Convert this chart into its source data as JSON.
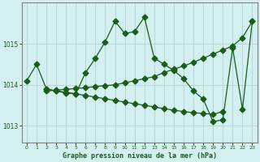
{
  "title": "Graphe pression niveau de la mer (hPa)",
  "bg_color": "#d4efef",
  "grid_color": "#b8d8d8",
  "line_color": "#1a5c1a",
  "xlim": [
    -0.5,
    23.5
  ],
  "ylim": [
    1012.6,
    1016.0
  ],
  "yticks": [
    1013,
    1014,
    1015
  ],
  "xticks": [
    0,
    1,
    2,
    3,
    4,
    5,
    6,
    7,
    8,
    9,
    10,
    11,
    12,
    13,
    14,
    15,
    16,
    17,
    18,
    19,
    20,
    21,
    22,
    23
  ],
  "series0_x": [
    0,
    1,
    2,
    3,
    4,
    5,
    6,
    7,
    8,
    9,
    10,
    11,
    12,
    13,
    14,
    15,
    16,
    17,
    18,
    19,
    20,
    21,
    22,
    23
  ],
  "series0_y": [
    1014.1,
    1014.5,
    1013.9,
    1013.85,
    1013.8,
    1013.78,
    1014.3,
    1014.65,
    1015.05,
    1015.55,
    1015.25,
    1015.3,
    1015.65,
    1014.65,
    1014.5,
    1014.35,
    1014.15,
    1013.85,
    1013.65,
    1013.1,
    1013.15,
    1014.9,
    1013.4,
    1015.55
  ],
  "series1_x": [
    2,
    3,
    4,
    5,
    6,
    7,
    8,
    9,
    10,
    11,
    12,
    13,
    14,
    15,
    16,
    17,
    18,
    19,
    20,
    21,
    22,
    23
  ],
  "series1_y": [
    1013.85,
    1013.87,
    1013.89,
    1013.91,
    1013.93,
    1013.96,
    1013.98,
    1014.0,
    1014.05,
    1014.1,
    1014.15,
    1014.2,
    1014.3,
    1014.38,
    1014.46,
    1014.55,
    1014.65,
    1014.75,
    1014.85,
    1014.95,
    1015.15,
    1015.55
  ],
  "series2_x": [
    2,
    3,
    4,
    5,
    6,
    7,
    8,
    9,
    10,
    11,
    12,
    13,
    14,
    15,
    16,
    17,
    18,
    19,
    20
  ],
  "series2_y": [
    1013.9,
    1013.85,
    1013.82,
    1013.78,
    1013.74,
    1013.7,
    1013.66,
    1013.62,
    1013.58,
    1013.54,
    1013.5,
    1013.46,
    1013.42,
    1013.38,
    1013.35,
    1013.32,
    1013.3,
    1013.28,
    1013.35
  ]
}
